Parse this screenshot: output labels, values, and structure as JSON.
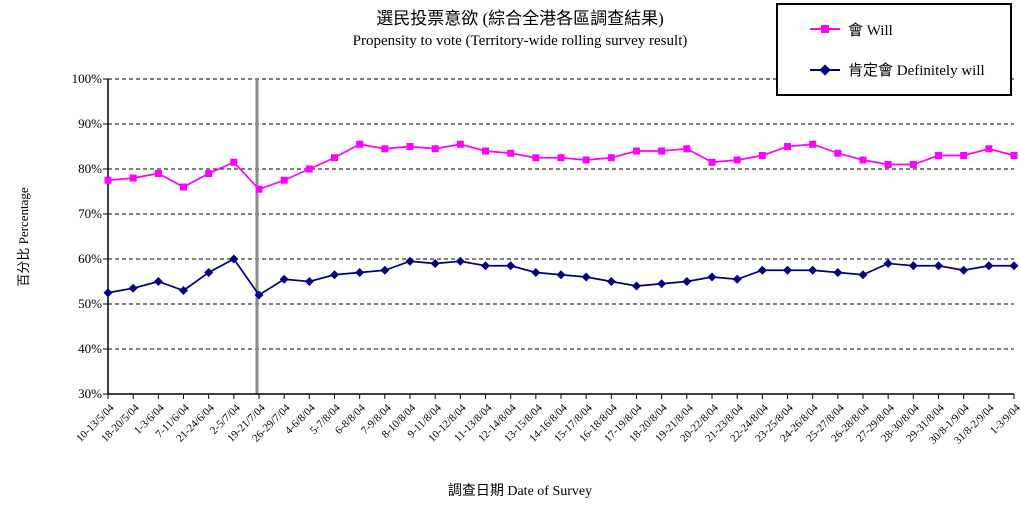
{
  "chart": {
    "title_zh": "選民投票意欲 (綜合全港各區調查結果)",
    "title_en": "Propensity to vote (Territory-wide rolling survey result)",
    "y_axis_title": "百分比 Percentage",
    "x_axis_title": "調查日期 Date of Survey"
  },
  "legend": {
    "items": [
      {
        "label": "會 Will",
        "color": "#FF00FF",
        "marker": "square"
      },
      {
        "label": "肯定會 Definitely will",
        "color": "#000080",
        "marker": "diamond"
      }
    ]
  },
  "chart_data": {
    "type": "line",
    "title": "選民投票意欲 (綜合全港各區調查結果) / Propensity to vote (Territory-wide rolling survey result)",
    "xlabel": "調查日期 Date of Survey",
    "ylabel": "百分比 Percentage",
    "ylim": [
      30,
      100
    ],
    "ytick_step": 10,
    "ytick_labels": [
      "100%",
      "90%",
      "80%",
      "70%",
      "60%",
      "50%",
      "40%",
      "30%"
    ],
    "grid": "horizontal-dashed",
    "legend_position": "top-right",
    "reference_line": {
      "at_category": "19-21/7/04",
      "orientation": "vertical",
      "color": "#8C8C8C"
    },
    "categories": [
      "10-13/5/04",
      "18-20/5/04",
      "1-3/6/04",
      "7-11/6/04",
      "21-24/6/04",
      "2-5/7/04",
      "19-21/7/04",
      "26-29/7/04",
      "4-6/8/04",
      "5-7/8/04",
      "6-8/8/04",
      "7-9/8/04",
      "8-10/8/04",
      "9-11/8/04",
      "10-12/8/04",
      "11-13/8/04",
      "12-14/8/04",
      "13-15/8/04",
      "14-16/8/04",
      "15-17/8/04",
      "16-18/8/04",
      "17-19/8/04",
      "18-20/8/04",
      "19-21/8/04",
      "20-22/8/04",
      "21-23/8/04",
      "22-24/8/04",
      "23-25/8/04",
      "24-26/8/04",
      "25-27/8/04",
      "26-28/8/04",
      "27-29/8/04",
      "28-30/8/04",
      "29-31/8/04",
      "30/8-1/9/04",
      "31/8-2/9/04",
      "1-3/9/04"
    ],
    "series": [
      {
        "name": "會 Will",
        "color": "#FF00FF",
        "marker": "square",
        "values": [
          77.5,
          78,
          79,
          76,
          79,
          81.5,
          75.5,
          77.5,
          80,
          82.5,
          85.5,
          84.5,
          85,
          84.5,
          85.5,
          84,
          83.5,
          82.5,
          82.5,
          82,
          82.5,
          84,
          84,
          84.5,
          81.5,
          82,
          83,
          85,
          85.5,
          83.5,
          82,
          81,
          81,
          83,
          83,
          84.5,
          83
        ]
      },
      {
        "name": "肯定會 Definitely will",
        "color": "#000080",
        "marker": "diamond",
        "values": [
          52.5,
          53.5,
          55,
          53,
          57,
          60,
          52,
          55.5,
          55,
          56.5,
          57,
          57.5,
          59.5,
          59,
          59.5,
          58.5,
          58.5,
          57,
          56.5,
          56,
          55,
          54,
          54.5,
          55,
          56,
          55.5,
          57.5,
          57.5,
          57.5,
          57,
          56.5,
          59,
          58.5,
          58.5,
          57.5,
          58.5,
          58.5
        ]
      }
    ]
  }
}
